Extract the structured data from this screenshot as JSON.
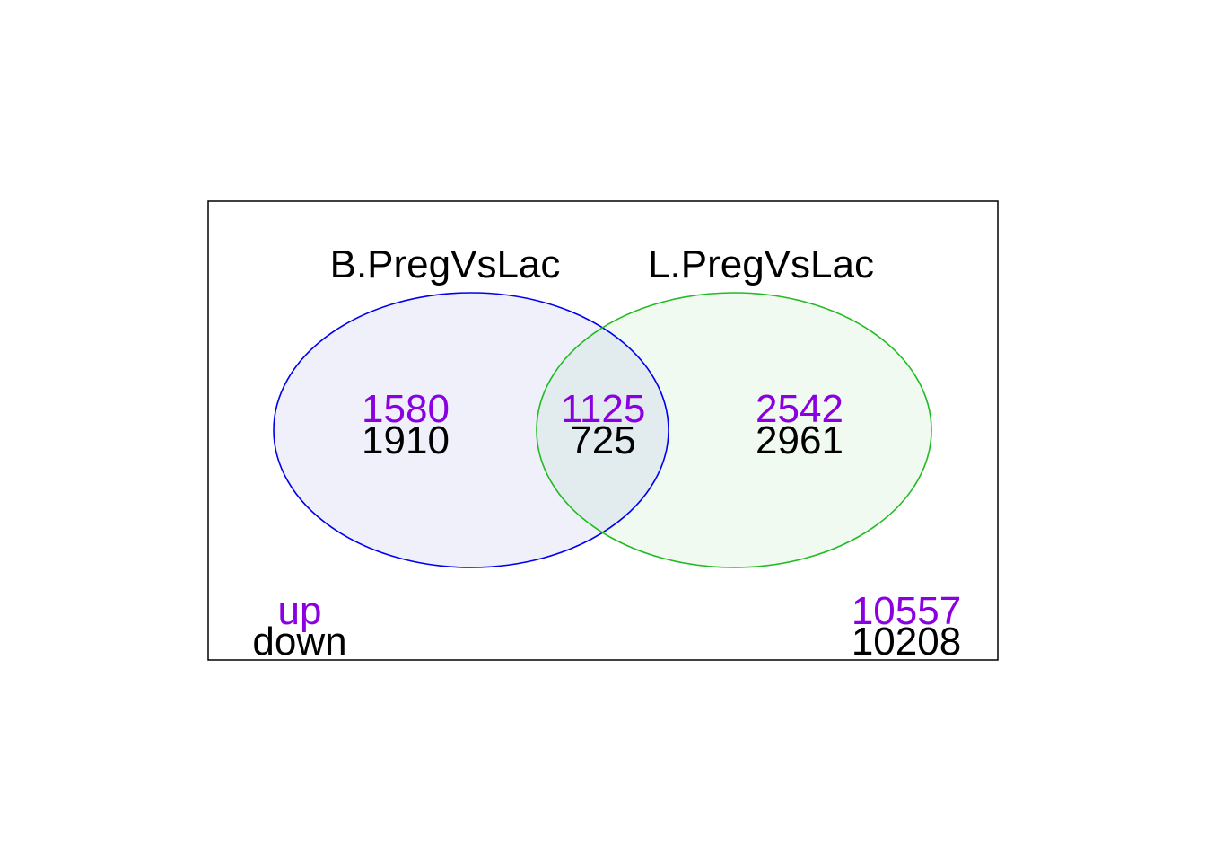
{
  "sets": [
    {
      "label": "B.PregVsLac",
      "stroke": "#0000ee",
      "fill": "#f0f0fb"
    },
    {
      "label": "L.PregVsLac",
      "stroke": "#22bb22",
      "fill": "#f0faf0"
    }
  ],
  "intersection_fill": "#e2ecef",
  "colors": {
    "up": "#8b00e0",
    "down": "#000000",
    "frame": "#000000"
  },
  "regions": {
    "b_only": {
      "up": "1580",
      "down": "1910"
    },
    "both": {
      "up": "1125",
      "down": "725"
    },
    "l_only": {
      "up": "2542",
      "down": "2961"
    },
    "outside": {
      "up": "10557",
      "down": "10208"
    }
  },
  "legend": {
    "up_label": "up",
    "down_label": "down"
  }
}
